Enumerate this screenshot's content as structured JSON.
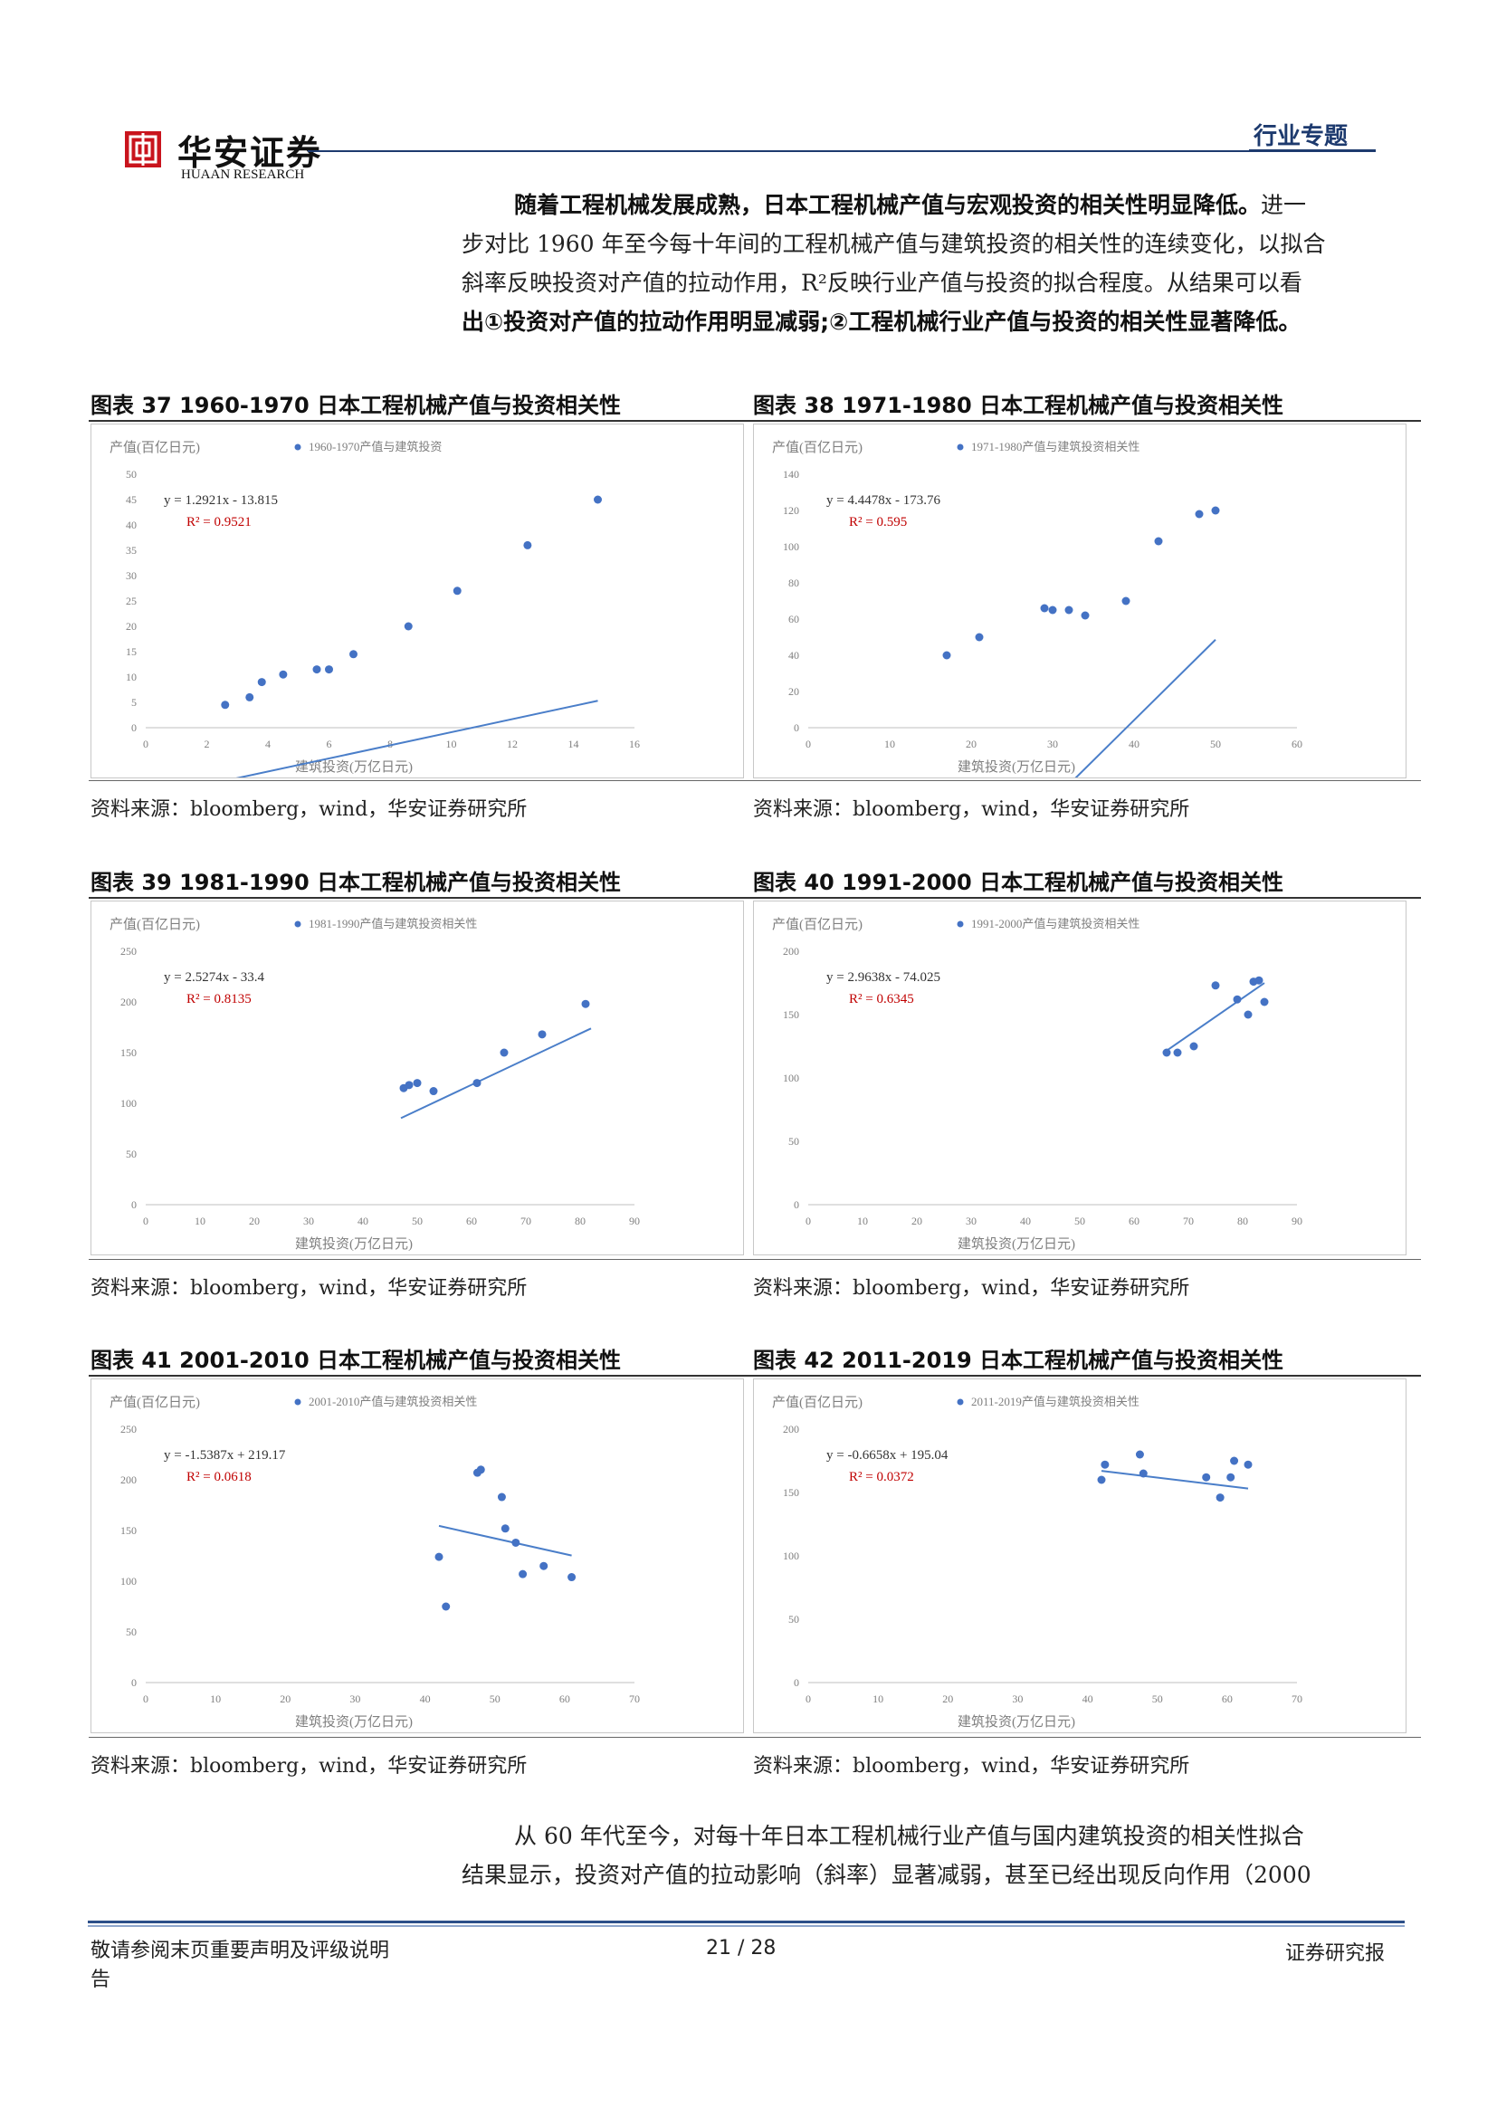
{
  "header": {
    "logo_cn": "华安证券",
    "logo_en": "HUAAN RESEARCH",
    "tag": "行业专题"
  },
  "intro": {
    "line1_bold": "随着工程机械发展成熟，日本工程机械产值与宏观投资的相关性明显降低。",
    "line1_rest": "进一",
    "line2": "步对比 1960 年至今每十年间的工程机械产值与建筑投资的相关性的连续变化，以拟合",
    "line3": "斜率反映投资对产值的拉动作用，R²反映行业产值与投资的拟合程度。从结果可以看",
    "line4_prefix": "出",
    "line4_bold": "①投资对产值的拉动作用明显减弱;②工程机械行业产值与投资的相关性显著降低。"
  },
  "figures": [
    {
      "title": "图表 37 1960-1970 日本工程机械产值与投资相关性",
      "source": "资料来源：bloomberg，wind，华安证券研究所"
    },
    {
      "title": "图表 38   1971-1980 日本工程机械产值与投资相关性",
      "source": "资料来源：bloomberg，wind，华安证券研究所"
    },
    {
      "title": "图表 39 1981-1990 日本工程机械产值与投资相关性",
      "source": "资料来源：bloomberg，wind，华安证券研究所"
    },
    {
      "title": "图表 40   1991-2000 日本工程机械产值与投资相关性",
      "source": "资料来源：bloomberg，wind，华安证券研究所"
    },
    {
      "title": "图表 41 2001-2010 日本工程机械产值与投资相关性",
      "source": "资料来源：bloomberg，wind，华安证券研究所"
    },
    {
      "title": "图表 42   2011-2019 日本工程机械产值与投资相关性",
      "source": "资料来源：bloomberg，wind，华安证券研究所"
    }
  ],
  "outro": {
    "line1": "从 60 年代至今，对每十年日本工程机械行业产值与国内建筑投资的相关性拟合",
    "line2": "结果显示，投资对产值的拉动影响（斜率）显著减弱，甚至已经出现反向作用（2000"
  },
  "footer": {
    "left": "敬请参阅末页重要声明及评级说明",
    "left_wrap": "告",
    "page": "21 / 28",
    "right": "证券研究报"
  },
  "colors": {
    "point": "#4472c4",
    "trend": "#4a7ec9",
    "r2": "#c00000",
    "accent": "#1d3a6e"
  },
  "chart_data": [
    {
      "type": "scatter",
      "ylabel": "产值(百亿日元)",
      "xlabel": "建筑投资(万亿日元)",
      "legend": "1960-1970产值与建筑投资",
      "equation": "y = 1.2921x - 13.815",
      "r2": "R² = 0.9521",
      "slope": 1.2921,
      "intercept": -13.815,
      "xlim": [
        0,
        16
      ],
      "xticks": [
        0,
        2,
        4,
        6,
        8,
        10,
        12,
        14,
        16
      ],
      "ylim": [
        0,
        50
      ],
      "yticks": [
        0,
        5,
        10,
        15,
        20,
        25,
        30,
        35,
        40,
        45,
        50
      ],
      "x": [
        2.6,
        3.4,
        3.8,
        4.5,
        5.6,
        6.0,
        6.8,
        8.6,
        10.2,
        12.5,
        14.8
      ],
      "y": [
        4.5,
        6.0,
        9.0,
        10.5,
        11.5,
        11.5,
        14.5,
        20.0,
        27.0,
        36.0,
        45.0
      ],
      "trend_x": [
        2.6,
        14.8
      ]
    },
    {
      "type": "scatter",
      "ylabel": "产值(百亿日元)",
      "xlabel": "建筑投资(万亿日元)",
      "legend": "1971-1980产值与建筑投资相关性",
      "equation": "y = 4.4478x - 173.76",
      "r2": "R² = 0.595",
      "slope": 4.4478,
      "intercept": -173.76,
      "xlim": [
        0,
        60
      ],
      "xticks": [
        0,
        10,
        20,
        30,
        40,
        50,
        60
      ],
      "ylim": [
        0,
        140
      ],
      "yticks": [
        0,
        20,
        40,
        60,
        80,
        100,
        120,
        140
      ],
      "x": [
        17,
        21,
        29,
        30,
        32,
        34,
        39,
        43,
        48,
        50
      ],
      "y": [
        40,
        50,
        66,
        65,
        65,
        62,
        70,
        103,
        118,
        120
      ],
      "trend_x": [
        17,
        50
      ]
    },
    {
      "type": "scatter",
      "ylabel": "产值(百亿日元)",
      "xlabel": "建筑投资(万亿日元)",
      "legend": "1981-1990产值与建筑投资相关性",
      "equation": "y = 2.5274x - 33.4",
      "r2": "R² = 0.8135",
      "slope": 2.5274,
      "intercept": -33.4,
      "xlim": [
        0,
        90
      ],
      "xticks": [
        0,
        10,
        20,
        30,
        40,
        50,
        60,
        70,
        80,
        90
      ],
      "ylim": [
        0,
        250
      ],
      "yticks": [
        0,
        50,
        100,
        150,
        200,
        250
      ],
      "x": [
        47.5,
        48.5,
        50,
        53,
        61,
        66,
        73,
        81
      ],
      "y": [
        115,
        118,
        120,
        112,
        120,
        150,
        168,
        198
      ],
      "trend_x": [
        47,
        82
      ]
    },
    {
      "type": "scatter",
      "ylabel": "产值(百亿日元)",
      "xlabel": "建筑投资(万亿日元)",
      "legend": "1991-2000产值与建筑投资相关性",
      "equation": "y = 2.9638x - 74.025",
      "r2": "R² = 0.6345",
      "slope": 2.9638,
      "intercept": -74.025,
      "xlim": [
        0,
        90
      ],
      "xticks": [
        0,
        10,
        20,
        30,
        40,
        50,
        60,
        70,
        80,
        90
      ],
      "ylim": [
        0,
        200
      ],
      "yticks": [
        0,
        50,
        100,
        150,
        200
      ],
      "x": [
        66,
        68,
        71,
        75,
        79,
        81,
        82,
        83,
        84
      ],
      "y": [
        120,
        120,
        125,
        173,
        162,
        150,
        176,
        177,
        160
      ],
      "trend_x": [
        66,
        84
      ]
    },
    {
      "type": "scatter",
      "ylabel": "产值(百亿日元)",
      "xlabel": "建筑投资(万亿日元)",
      "legend": "2001-2010产值与建筑投资相关性",
      "equation": "y = -1.5387x + 219.17",
      "r2": "R² = 0.0618",
      "slope": -1.5387,
      "intercept": 219.17,
      "xlim": [
        0,
        70
      ],
      "xticks": [
        0,
        10,
        20,
        30,
        40,
        50,
        60,
        70
      ],
      "ylim": [
        0,
        250
      ],
      "yticks": [
        0,
        50,
        100,
        150,
        200,
        250
      ],
      "x": [
        42,
        43,
        47.5,
        48,
        51,
        51.5,
        53,
        54,
        57,
        61
      ],
      "y": [
        124,
        75,
        207,
        210,
        183,
        152,
        138,
        107,
        115,
        104
      ],
      "trend_x": [
        42,
        61
      ]
    },
    {
      "type": "scatter",
      "ylabel": "产值(百亿日元)",
      "xlabel": "建筑投资(万亿日元)",
      "legend": "2011-2019产值与建筑投资相关性",
      "equation": "y = -0.6658x + 195.04",
      "r2": "R² = 0.0372",
      "slope": -0.6658,
      "intercept": 195.04,
      "xlim": [
        0,
        70
      ],
      "xticks": [
        0,
        10,
        20,
        30,
        40,
        50,
        60,
        70
      ],
      "ylim": [
        0,
        200
      ],
      "yticks": [
        0,
        50,
        100,
        150,
        200
      ],
      "x": [
        42,
        42.5,
        47.5,
        48,
        57,
        59,
        60.5,
        61,
        63
      ],
      "y": [
        160,
        172,
        180,
        165,
        162,
        146,
        162,
        175,
        172
      ],
      "trend_x": [
        42,
        63
      ]
    }
  ]
}
